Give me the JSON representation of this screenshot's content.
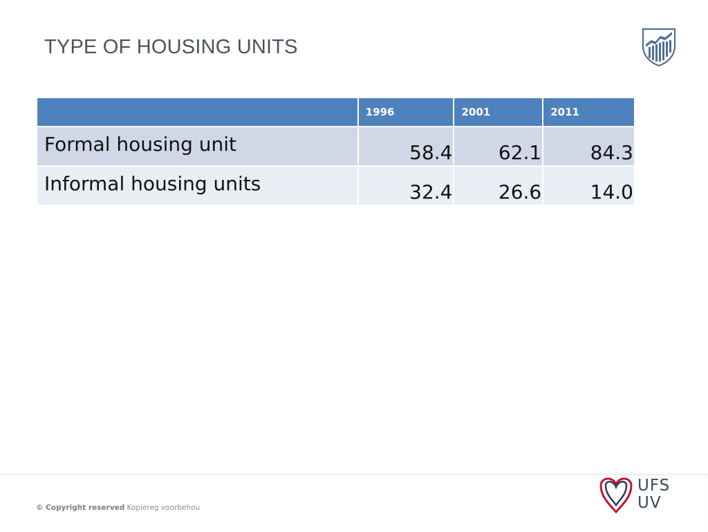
{
  "slide": {
    "title": "TYPE OF HOUSING UNITS"
  },
  "table": {
    "header": [
      "",
      "1996",
      "2001",
      "2011"
    ],
    "rows": [
      {
        "label": "Formal housing unit",
        "values": [
          "58.4",
          "62.1",
          "84.3"
        ]
      },
      {
        "label": "Informal housing units",
        "values": [
          "32.4",
          "26.6",
          "14.0"
        ]
      }
    ]
  },
  "chart_data": {
    "type": "table",
    "columns": [
      "1996",
      "2001",
      "2011"
    ],
    "rows": [
      {
        "name": "Formal housing unit",
        "values": [
          58.4,
          62.1,
          84.3
        ]
      },
      {
        "name": "Informal housing units",
        "values": [
          32.4,
          26.6,
          14.0
        ]
      }
    ]
  },
  "footer": {
    "copyright_bold": "© Copyright reserved",
    "copyright_rest": " Kopiereg voorbehou",
    "logo_line1": "UFS",
    "logo_line2": "UV"
  },
  "colors": {
    "header_bg": "#4f81bd",
    "row1_bg": "#d0d8e8",
    "row2_bg": "#e9edf4",
    "title": "#4a5460",
    "logo_red": "#c8102e",
    "logo_navy": "#2b3a55"
  },
  "icons": {
    "crest": "university-crest-icon",
    "logo": "ufs-heart-logo-icon"
  }
}
